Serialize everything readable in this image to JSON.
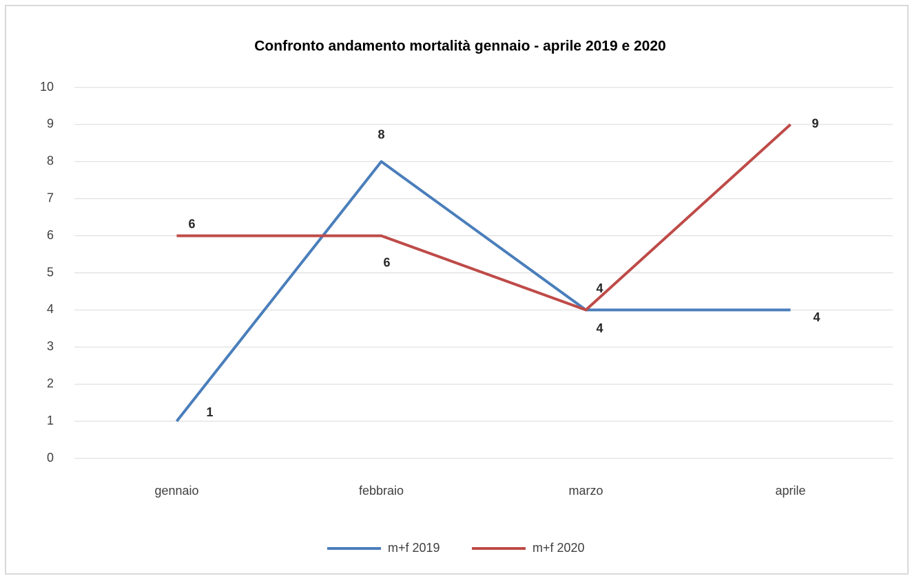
{
  "chart_data": {
    "type": "line",
    "title": "Confronto andamento mortalità gennaio - aprile 2019 e 2020",
    "categories": [
      "gennaio",
      "febbraio",
      "marzo",
      "aprile"
    ],
    "series": [
      {
        "name": "m+f 2019",
        "color": "#4a7ebb",
        "values": [
          1,
          8,
          4,
          4
        ]
      },
      {
        "name": "m+f 2020",
        "color": "#be4b48",
        "values": [
          6,
          6,
          4,
          9
        ]
      }
    ],
    "ylim": [
      0,
      10
    ],
    "yticks": [
      0,
      1,
      2,
      3,
      4,
      5,
      6,
      7,
      8,
      9,
      10
    ],
    "grid": true,
    "legend": "bottom"
  }
}
